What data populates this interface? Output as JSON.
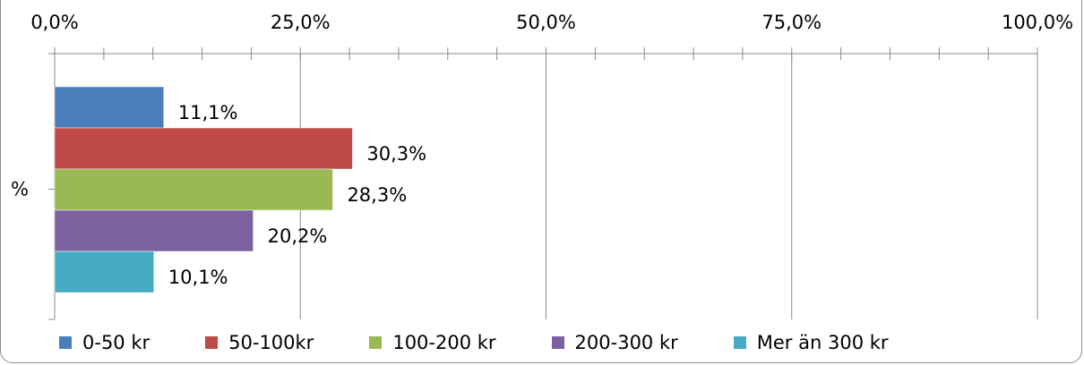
{
  "chart_data": {
    "type": "bar",
    "orientation": "horizontal",
    "categories": [
      "%"
    ],
    "series": [
      {
        "name": "0-50 kr",
        "values": [
          11.1
        ],
        "label": "11,1%",
        "color": "#4a7ebb"
      },
      {
        "name": "50-100kr",
        "values": [
          30.3
        ],
        "label": "30,3%",
        "color": "#be4b48"
      },
      {
        "name": "100-200 kr",
        "values": [
          28.3
        ],
        "label": "28,3%",
        "color": "#98b954"
      },
      {
        "name": "200-300 kr",
        "values": [
          20.2
        ],
        "label": "20,2%",
        "color": "#7d60a0"
      },
      {
        "name": "Mer än 300 kr",
        "values": [
          10.1
        ],
        "label": "10,1%",
        "color": "#46aac4"
      }
    ],
    "xlim": [
      0,
      100
    ],
    "x_ticks": [
      0,
      25,
      50,
      75,
      100
    ],
    "x_tick_labels": [
      "0,0%",
      "25,0%",
      "50,0%",
      "75,0%",
      "100,0%"
    ],
    "x_axis_position": "top",
    "grid": true,
    "legend_position": "bottom",
    "title": "",
    "xlabel": "",
    "ylabel": ""
  }
}
